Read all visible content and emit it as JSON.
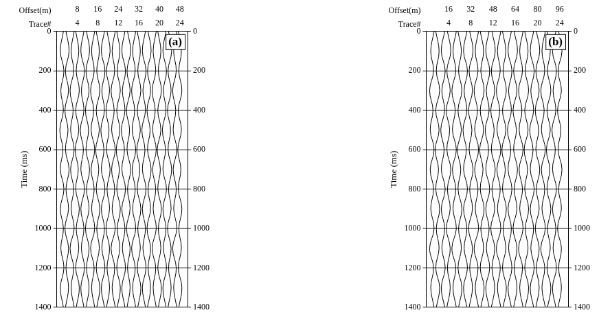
{
  "chart_data": [
    {
      "type": "line",
      "label": "(a)",
      "color": "#000000",
      "grid": true,
      "xlabel": "Trace#",
      "xlim": [
        0,
        25.5
      ],
      "xticks": [
        4,
        8,
        12,
        16,
        20,
        24
      ],
      "x2label": "Offset(m)",
      "x2lim": [
        0,
        51
      ],
      "x2ticks": [
        8,
        16,
        24,
        32,
        40,
        48
      ],
      "ylabel": "Time (ms)",
      "ylim": [
        0,
        1400
      ],
      "yticks": [
        0,
        200,
        400,
        600,
        800,
        1000,
        1200,
        1400
      ],
      "y": [
        0,
        100,
        200,
        300,
        400,
        500,
        600,
        700,
        800,
        900,
        1000,
        1100,
        1200,
        1300,
        1400
      ],
      "series": [
        {
          "values": [
            1.3,
            0.7,
            1.4,
            0.8,
            1.3,
            0.6,
            1.2,
            0.7,
            1.4,
            0.7,
            1.3,
            0.8,
            1.4,
            0.7,
            1.3
          ]
        },
        {
          "values": [
            1.8,
            2.4,
            1.7,
            2.3,
            1.6,
            2.2,
            1.7,
            2.4,
            1.8,
            2.3,
            1.6,
            2.3,
            1.8,
            2.3,
            1.7
          ]
        },
        {
          "values": [
            3.4,
            2.8,
            3.3,
            2.6,
            3.2,
            2.7,
            3.4,
            2.7,
            3.3,
            2.8,
            3.4,
            2.6,
            3.3,
            2.8,
            3.4
          ]
        },
        {
          "values": [
            3.7,
            4.3,
            3.8,
            4.4,
            3.7,
            4.3,
            3.6,
            4.2,
            3.7,
            4.4,
            3.8,
            4.3,
            3.7,
            4.4,
            3.8
          ]
        },
        {
          "values": [
            5.3,
            4.7,
            5.4,
            4.8,
            5.3,
            4.6,
            5.2,
            4.7,
            5.4,
            4.7,
            5.3,
            4.8,
            5.4,
            4.7,
            5.3
          ]
        },
        {
          "values": [
            5.8,
            6.4,
            5.7,
            6.3,
            5.6,
            6.2,
            5.7,
            6.4,
            5.8,
            6.3,
            5.6,
            6.3,
            5.8,
            6.3,
            5.7
          ]
        },
        {
          "values": [
            7.4,
            6.8,
            7.3,
            6.6,
            7.2,
            6.7,
            7.4,
            6.7,
            7.3,
            6.8,
            7.4,
            6.6,
            7.3,
            6.8,
            7.4
          ]
        },
        {
          "values": [
            7.7,
            8.3,
            7.8,
            8.4,
            7.7,
            8.3,
            7.6,
            8.2,
            7.7,
            8.4,
            7.8,
            8.3,
            7.7,
            8.4,
            7.8
          ]
        },
        {
          "values": [
            9.3,
            8.7,
            9.4,
            8.8,
            9.3,
            8.6,
            9.2,
            8.7,
            9.4,
            8.7,
            9.3,
            8.8,
            9.4,
            8.7,
            9.3
          ]
        },
        {
          "values": [
            9.8,
            10.4,
            9.7,
            10.3,
            9.6,
            10.2,
            9.7,
            10.4,
            9.8,
            10.3,
            9.6,
            10.3,
            9.8,
            10.3,
            9.7
          ]
        },
        {
          "values": [
            11.4,
            10.8,
            11.3,
            10.6,
            11.2,
            10.7,
            11.4,
            10.7,
            11.3,
            10.8,
            11.4,
            10.6,
            11.3,
            10.8,
            11.4
          ]
        },
        {
          "values": [
            11.7,
            12.3,
            11.8,
            12.4,
            11.7,
            12.3,
            11.6,
            12.2,
            11.7,
            12.4,
            11.8,
            12.3,
            11.7,
            12.4,
            11.8
          ]
        },
        {
          "values": [
            13.3,
            12.7,
            13.4,
            12.8,
            13.3,
            12.6,
            13.2,
            12.7,
            13.4,
            12.7,
            13.3,
            12.8,
            13.4,
            12.7,
            13.3
          ]
        },
        {
          "values": [
            13.8,
            14.4,
            13.7,
            14.3,
            13.6,
            14.2,
            13.7,
            14.4,
            13.8,
            14.3,
            13.6,
            14.3,
            13.8,
            14.3,
            13.7
          ]
        },
        {
          "values": [
            15.4,
            14.8,
            15.3,
            14.6,
            15.2,
            14.7,
            15.4,
            14.7,
            15.3,
            14.8,
            15.4,
            14.6,
            15.3,
            14.8,
            15.4
          ]
        },
        {
          "values": [
            15.7,
            16.3,
            15.8,
            16.4,
            15.7,
            16.3,
            15.6,
            16.2,
            15.7,
            16.4,
            15.8,
            16.3,
            15.7,
            16.4,
            15.8
          ]
        },
        {
          "values": [
            17.3,
            16.7,
            17.4,
            16.8,
            17.3,
            16.6,
            17.2,
            16.7,
            17.4,
            16.7,
            17.3,
            16.8,
            17.4,
            16.7,
            17.3
          ]
        },
        {
          "values": [
            17.8,
            18.4,
            17.7,
            18.3,
            17.6,
            18.2,
            17.7,
            18.4,
            17.8,
            18.3,
            17.6,
            18.3,
            17.8,
            18.3,
            17.7
          ]
        },
        {
          "values": [
            19.4,
            18.8,
            19.3,
            18.6,
            19.2,
            18.7,
            19.4,
            18.7,
            19.3,
            18.8,
            19.4,
            18.6,
            19.3,
            18.8,
            19.4
          ]
        },
        {
          "values": [
            19.7,
            20.3,
            19.8,
            20.4,
            19.7,
            20.3,
            19.6,
            20.2,
            19.7,
            20.4,
            19.8,
            20.3,
            19.7,
            20.4,
            19.8
          ]
        },
        {
          "values": [
            21.3,
            20.7,
            21.4,
            20.8,
            21.3,
            20.6,
            21.2,
            20.7,
            21.4,
            20.7,
            21.3,
            20.8,
            21.4,
            20.7,
            21.3
          ]
        },
        {
          "values": [
            21.8,
            22.4,
            21.7,
            22.3,
            21.6,
            22.2,
            21.7,
            22.4,
            21.8,
            22.3,
            21.6,
            22.3,
            21.8,
            22.3,
            21.7
          ]
        },
        {
          "values": [
            23.4,
            22.8,
            23.3,
            22.6,
            23.2,
            22.7,
            23.4,
            22.7,
            23.3,
            22.8,
            23.4,
            22.6,
            23.3,
            22.8,
            23.4
          ]
        },
        {
          "values": [
            23.7,
            24.3,
            23.8,
            24.4,
            23.7,
            24.3,
            23.6,
            24.2,
            23.7,
            24.4,
            23.8,
            24.3,
            23.7,
            24.4,
            23.8
          ]
        }
      ]
    },
    {
      "type": "line",
      "label": "(b)",
      "color": "#000000",
      "grid": true,
      "xlabel": "Trace#",
      "xlim": [
        0,
        25.5
      ],
      "xticks": [
        4,
        8,
        12,
        16,
        20,
        24
      ],
      "x2label": "Offset(m)",
      "x2lim": [
        0,
        102
      ],
      "x2ticks": [
        16,
        32,
        48,
        64,
        80,
        96
      ],
      "ylabel": "Time (ms)",
      "ylim": [
        0,
        1400
      ],
      "yticks": [
        0,
        200,
        400,
        600,
        800,
        1000,
        1200,
        1400
      ],
      "y": [
        0,
        100,
        200,
        300,
        400,
        500,
        600,
        700,
        800,
        900,
        1000,
        1100,
        1200,
        1300,
        1400
      ],
      "series": [
        {
          "values": [
            1.4,
            0.8,
            1.3,
            0.6,
            1.2,
            0.7,
            1.4,
            0.7,
            1.3,
            0.8,
            1.4,
            0.6,
            1.3,
            0.8,
            1.4
          ]
        },
        {
          "values": [
            1.7,
            2.3,
            1.8,
            2.4,
            1.7,
            2.3,
            1.6,
            2.2,
            1.7,
            2.4,
            1.8,
            2.3,
            1.7,
            2.4,
            1.8
          ]
        },
        {
          "values": [
            3.3,
            2.7,
            3.4,
            2.8,
            3.3,
            2.6,
            3.2,
            2.7,
            3.4,
            2.7,
            3.3,
            2.8,
            3.4,
            2.7,
            3.3
          ]
        },
        {
          "values": [
            3.8,
            4.4,
            3.7,
            4.3,
            3.6,
            4.2,
            3.7,
            4.4,
            3.8,
            4.3,
            3.6,
            4.3,
            3.8,
            4.3,
            3.7
          ]
        },
        {
          "values": [
            5.4,
            4.8,
            5.3,
            4.6,
            5.2,
            4.7,
            5.4,
            4.7,
            5.3,
            4.8,
            5.4,
            4.6,
            5.3,
            4.8,
            5.4
          ]
        },
        {
          "values": [
            5.7,
            6.3,
            5.8,
            6.4,
            5.7,
            6.3,
            5.6,
            6.2,
            5.7,
            6.4,
            5.8,
            6.3,
            5.7,
            6.4,
            5.8
          ]
        },
        {
          "values": [
            7.3,
            6.7,
            7.4,
            6.8,
            7.3,
            6.6,
            7.2,
            6.7,
            7.4,
            6.7,
            7.3,
            6.8,
            7.4,
            6.7,
            7.3
          ]
        },
        {
          "values": [
            7.8,
            8.4,
            7.7,
            8.3,
            7.6,
            8.2,
            7.7,
            8.4,
            7.8,
            8.3,
            7.6,
            8.3,
            7.8,
            8.3,
            7.7
          ]
        },
        {
          "values": [
            9.4,
            8.8,
            9.3,
            8.6,
            9.2,
            8.7,
            9.4,
            8.7,
            9.3,
            8.8,
            9.4,
            8.6,
            9.3,
            8.8,
            9.4
          ]
        },
        {
          "values": [
            9.7,
            10.3,
            9.8,
            10.4,
            9.7,
            10.3,
            9.6,
            10.2,
            9.7,
            10.4,
            9.8,
            10.3,
            9.7,
            10.4,
            9.8
          ]
        },
        {
          "values": [
            11.3,
            10.7,
            11.4,
            10.8,
            11.3,
            10.6,
            11.2,
            10.7,
            11.4,
            10.7,
            11.3,
            10.8,
            11.4,
            10.7,
            11.3
          ]
        },
        {
          "values": [
            11.8,
            12.4,
            11.7,
            12.3,
            11.6,
            12.2,
            11.7,
            12.4,
            11.8,
            12.3,
            11.6,
            12.3,
            11.8,
            12.3,
            11.7
          ]
        },
        {
          "values": [
            13.4,
            12.8,
            13.3,
            12.6,
            13.2,
            12.7,
            13.4,
            12.7,
            13.3,
            12.8,
            13.4,
            12.6,
            13.3,
            12.8,
            13.4
          ]
        },
        {
          "values": [
            13.7,
            14.3,
            13.8,
            14.4,
            13.7,
            14.3,
            13.6,
            14.2,
            13.7,
            14.4,
            13.8,
            14.3,
            13.7,
            14.4,
            13.8
          ]
        },
        {
          "values": [
            15.3,
            14.7,
            15.4,
            14.8,
            15.3,
            14.6,
            15.2,
            14.7,
            15.4,
            14.7,
            15.3,
            14.8,
            15.4,
            14.7,
            15.3
          ]
        },
        {
          "values": [
            15.8,
            16.4,
            15.7,
            16.3,
            15.6,
            16.2,
            15.7,
            16.4,
            15.8,
            16.3,
            15.6,
            16.3,
            15.8,
            16.3,
            15.7
          ]
        },
        {
          "values": [
            17.4,
            16.8,
            17.3,
            16.6,
            17.2,
            16.7,
            17.4,
            16.7,
            17.3,
            16.8,
            17.4,
            16.6,
            17.3,
            16.8,
            17.4
          ]
        },
        {
          "values": [
            17.7,
            18.3,
            17.8,
            18.4,
            17.7,
            18.3,
            17.6,
            18.2,
            17.7,
            18.4,
            17.8,
            18.3,
            17.7,
            18.4,
            17.8
          ]
        },
        {
          "values": [
            19.3,
            18.7,
            19.4,
            18.8,
            19.3,
            18.6,
            19.2,
            18.7,
            19.4,
            18.7,
            19.3,
            18.8,
            19.4,
            18.7,
            19.3
          ]
        },
        {
          "values": [
            19.8,
            20.4,
            19.7,
            20.3,
            19.6,
            20.2,
            19.7,
            20.4,
            19.8,
            20.3,
            19.6,
            20.3,
            19.8,
            20.3,
            19.7
          ]
        },
        {
          "values": [
            21.4,
            20.8,
            21.3,
            20.6,
            21.2,
            20.7,
            21.4,
            20.7,
            21.3,
            20.8,
            21.4,
            20.6,
            21.3,
            20.8,
            21.4
          ]
        },
        {
          "values": [
            21.7,
            22.3,
            21.8,
            22.4,
            21.7,
            22.3,
            21.6,
            22.2,
            21.7,
            22.4,
            21.8,
            22.3,
            21.7,
            22.4,
            21.8
          ]
        },
        {
          "values": [
            23.3,
            22.7,
            23.4,
            22.8,
            23.3,
            22.6,
            23.2,
            22.7,
            23.4,
            22.7,
            23.3,
            22.8,
            23.4,
            22.7,
            23.3
          ]
        },
        {
          "values": [
            23.8,
            24.4,
            23.7,
            24.3,
            23.6,
            24.2,
            23.7,
            24.4,
            23.8,
            24.3,
            23.6,
            24.3,
            23.8,
            24.3,
            23.7
          ]
        }
      ]
    }
  ]
}
